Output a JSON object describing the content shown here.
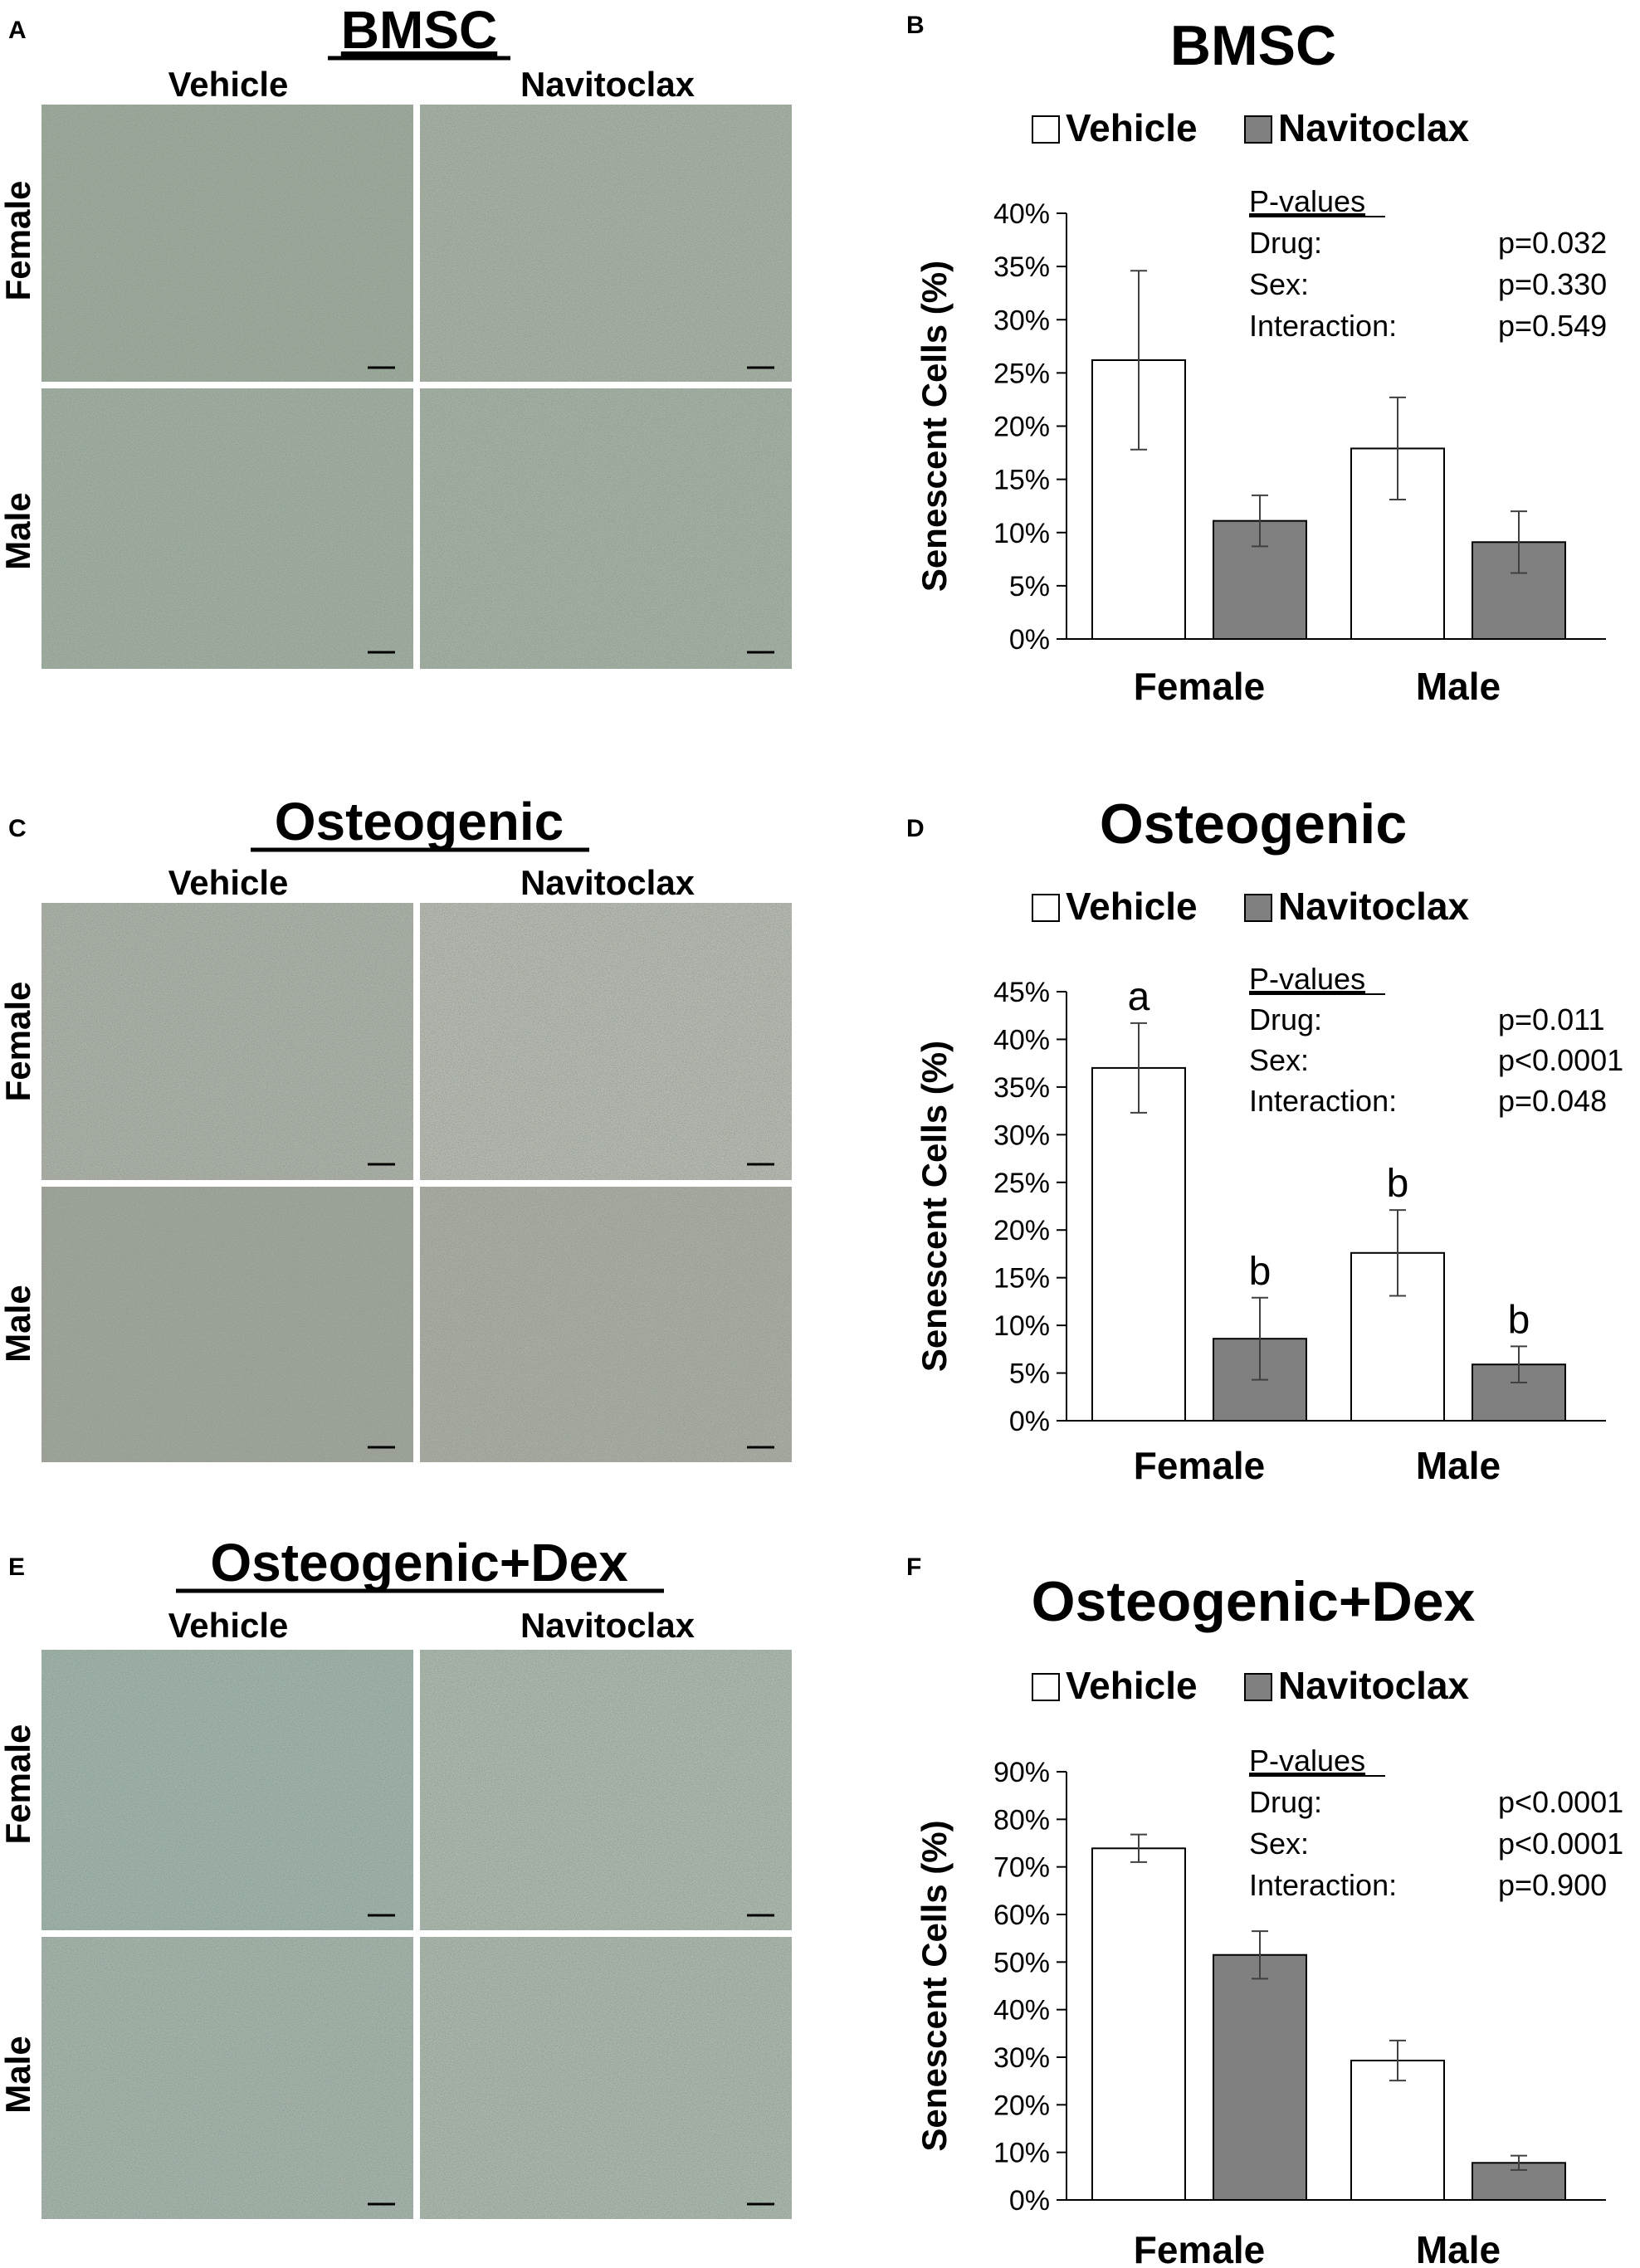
{
  "column_labels": {
    "vehicle": "Vehicle",
    "navitoclax": "Navitoclax"
  },
  "row_labels": {
    "female": "Female",
    "male": "Male"
  },
  "colors": {
    "vehicle_fill": "#ffffff",
    "navitoclax_fill": "#808080",
    "micro_bms": "#9aab9a",
    "micro_osteo": "#a9b0a3",
    "micro_dex": "#a4b6aa"
  },
  "panels": [
    {
      "image_panel": {
        "letter": "A",
        "title": "BMSC"
      },
      "chart_panel": {
        "letter": "B"
      }
    },
    {
      "image_panel": {
        "letter": "C",
        "title": "Osteogenic"
      },
      "chart_panel": {
        "letter": "D"
      }
    },
    {
      "image_panel": {
        "letter": "E",
        "title": "Osteogenic+Dex"
      },
      "chart_panel": {
        "letter": "F"
      }
    }
  ],
  "chart_data": [
    {
      "type": "bar",
      "title": "BMSC",
      "categories": [
        "Female",
        "Male"
      ],
      "ylabel": "Senescent Cells (%)",
      "ylim": [
        0,
        40
      ],
      "yticks": [
        "0%",
        "5%",
        "10%",
        "15%",
        "20%",
        "25%",
        "30%",
        "35%",
        "40%"
      ],
      "legend": "top",
      "series": [
        {
          "name": "Vehicle",
          "values": [
            26.2,
            17.9
          ],
          "error": [
            8.4,
            4.8
          ],
          "letters": [
            "",
            ""
          ]
        },
        {
          "name": "Navitoclax",
          "values": [
            11.1,
            9.1
          ],
          "error": [
            2.4,
            2.9
          ],
          "letters": [
            "",
            ""
          ]
        }
      ],
      "pvalues": {
        "heading": "P-values",
        "rows": [
          {
            "label": "Drug:",
            "value": "p=0.032"
          },
          {
            "label": "Sex:",
            "value": "p=0.330"
          },
          {
            "label": "Interaction:",
            "value": "p=0.549"
          }
        ]
      }
    },
    {
      "type": "bar",
      "title": "Osteogenic",
      "categories": [
        "Female",
        "Male"
      ],
      "ylabel": "Senescent Cells (%)",
      "ylim": [
        0,
        45
      ],
      "yticks": [
        "0%",
        "5%",
        "10%",
        "15%",
        "20%",
        "25%",
        "30%",
        "35%",
        "40%",
        "45%"
      ],
      "legend": "top",
      "series": [
        {
          "name": "Vehicle",
          "values": [
            37.0,
            17.6
          ],
          "error": [
            4.7,
            4.5
          ],
          "letters": [
            "a",
            "b"
          ]
        },
        {
          "name": "Navitoclax",
          "values": [
            8.6,
            5.9
          ],
          "error": [
            4.3,
            1.9
          ],
          "letters": [
            "b",
            "b"
          ]
        }
      ],
      "pvalues": {
        "heading": "P-values",
        "rows": [
          {
            "label": "Drug:",
            "value": "p=0.011"
          },
          {
            "label": "Sex:",
            "value": "p<0.0001"
          },
          {
            "label": "Interaction:",
            "value": "p=0.048"
          }
        ]
      }
    },
    {
      "type": "bar",
      "title": "Osteogenic+Dex",
      "categories": [
        "Female",
        "Male"
      ],
      "ylabel": "Senescent Cells (%)",
      "ylim": [
        0,
        90
      ],
      "yticks": [
        "0%",
        "10%",
        "20%",
        "30%",
        "40%",
        "50%",
        "60%",
        "70%",
        "80%",
        "90%"
      ],
      "legend": "top",
      "series": [
        {
          "name": "Vehicle",
          "values": [
            73.9,
            29.3
          ],
          "error": [
            2.9,
            4.2
          ],
          "letters": [
            "",
            ""
          ]
        },
        {
          "name": "Navitoclax",
          "values": [
            51.5,
            7.8
          ],
          "error": [
            5.0,
            1.5
          ],
          "letters": [
            "",
            ""
          ]
        }
      ],
      "pvalues": {
        "heading": "P-values",
        "rows": [
          {
            "label": "Drug:",
            "value": "p<0.0001"
          },
          {
            "label": "Sex:",
            "value": "p<0.0001"
          },
          {
            "label": "Interaction:",
            "value": "p=0.900"
          }
        ]
      }
    }
  ]
}
